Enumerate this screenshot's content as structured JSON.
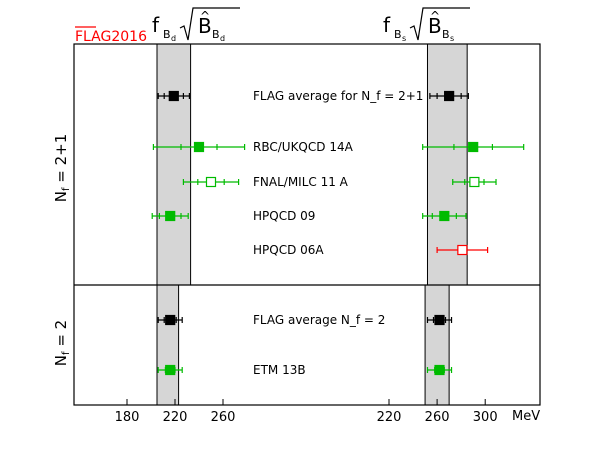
{
  "chart_data": {
    "type": "scatter",
    "logo": "FLAG2016",
    "headers": {
      "left_main": "f",
      "left_sub": "B",
      "right_main": "f",
      "right_sub": "B"
    },
    "unit": "MeV",
    "left_panel": {
      "xlim": [
        140,
        300
      ],
      "ticks": [
        180,
        220,
        260
      ]
    },
    "right_panel": {
      "xlim": [
        140,
        320
      ],
      "ticks": [
        220,
        260,
        300
      ]
    },
    "groups": [
      {
        "name": "N_f = 2+1",
        "band_left": [
          205,
          233
        ],
        "band_right": [
          252,
          285
        ],
        "rows": [
          {
            "label": "FLAG average for N_f = 2+1",
            "color": "#000000",
            "filled": true,
            "left": {
              "value": 219,
              "err": 13,
              "syst": 8
            },
            "right": {
              "value": 270,
              "err": 16,
              "syst": 10
            }
          },
          {
            "label": "RBC/UKQCD 14A",
            "color": "#00bb00",
            "filled": true,
            "left": {
              "value": 240,
              "err": 38,
              "syst": 15
            },
            "right": {
              "value": 290,
              "err": 42,
              "syst": 16
            }
          },
          {
            "label": "FNAL/MILC 11 A",
            "color": "#00bb00",
            "filled": false,
            "left": {
              "value": 250,
              "err": 23,
              "syst": 11
            },
            "right": {
              "value": 291,
              "err": 18,
              "syst": 8
            }
          },
          {
            "label": "HPQCD 09",
            "color": "#00bb00",
            "filled": true,
            "left": {
              "value": 216,
              "err": 15,
              "syst": 9
            },
            "right": {
              "value": 266,
              "err": 18,
              "syst": 10
            }
          },
          {
            "label": "HPQCD 06A",
            "color": "#ff0000",
            "filled": false,
            "left": null,
            "right": {
              "value": 281,
              "err": 21,
              "syst": 0
            }
          }
        ]
      },
      {
        "name": "N_f = 2",
        "band_left": [
          205,
          223
        ],
        "band_right": [
          250,
          270
        ],
        "rows": [
          {
            "label": "FLAG average N_f = 2",
            "color": "#000000",
            "filled": true,
            "left": {
              "value": 216,
              "err": 10,
              "syst": 5
            },
            "right": {
              "value": 262,
              "err": 10,
              "syst": 5
            }
          },
          {
            "label": "ETM 13B",
            "color": "#00bb00",
            "filled": true,
            "left": {
              "value": 216,
              "err": 10,
              "syst": 4
            },
            "right": {
              "value": 262,
              "err": 10,
              "syst": 4
            }
          }
        ]
      }
    ]
  }
}
